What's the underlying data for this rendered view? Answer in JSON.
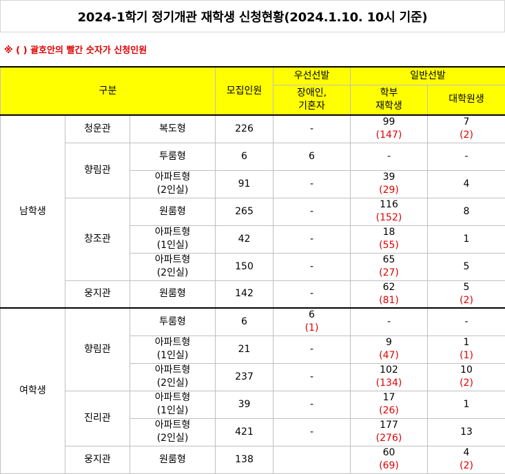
{
  "title": "2024-1학기 정기개관 재학생 신청현황(2024.1.10. 10시 기준)",
  "note": "※ ( ) 괄호안의 빨간 숫자가 신청인원",
  "headers": {
    "category": "구분",
    "capacity": "모집인원",
    "priority": "우선선발",
    "priority_sub": [
      "장애인,",
      "기혼자"
    ],
    "general": "일반선발",
    "undergrad_sub": [
      "학부",
      "재학생"
    ],
    "grad": "대학원생"
  },
  "groups": {
    "male": "남학생",
    "female": "여학생"
  },
  "rows": [
    {
      "building": "청운관",
      "type": [
        "복도형"
      ],
      "capacity": "226",
      "priority": "-",
      "priority_app": "",
      "undergrad": "99",
      "undergrad_app": "(147)",
      "grad": "7",
      "grad_app": "(2)"
    },
    {
      "building": "향림관",
      "type": [
        "투룸형"
      ],
      "capacity": "6",
      "priority": "6",
      "priority_app": "",
      "undergrad": "-",
      "undergrad_app": "",
      "grad": "-",
      "grad_app": ""
    },
    {
      "building": "",
      "type": [
        "아파트형",
        "(2인실)"
      ],
      "capacity": "91",
      "priority": "-",
      "priority_app": "",
      "undergrad": "39",
      "undergrad_app": "(29)",
      "grad": "4",
      "grad_app": ""
    },
    {
      "building": "창조관",
      "type": [
        "원룸형"
      ],
      "capacity": "265",
      "priority": "-",
      "priority_app": "",
      "undergrad": "116",
      "undergrad_app": "(152)",
      "grad": "8",
      "grad_app": ""
    },
    {
      "building": "",
      "type": [
        "아파트형",
        "(1인실)"
      ],
      "capacity": "42",
      "priority": "-",
      "priority_app": "",
      "undergrad": "18",
      "undergrad_app": "(55)",
      "grad": "1",
      "grad_app": ""
    },
    {
      "building": "",
      "type": [
        "아파트형",
        "(2인실)"
      ],
      "capacity": "150",
      "priority": "-",
      "priority_app": "",
      "undergrad": "65",
      "undergrad_app": "(27)",
      "grad": "5",
      "grad_app": ""
    },
    {
      "building": "웅지관",
      "type": [
        "원룸형"
      ],
      "capacity": "142",
      "priority": "-",
      "priority_app": "",
      "undergrad": "62",
      "undergrad_app": "(81)",
      "grad": "5",
      "grad_app": "(2)"
    },
    {
      "building": "향림관",
      "type": [
        "투룸형"
      ],
      "capacity": "6",
      "priority": "6",
      "priority_app": "(1)",
      "undergrad": "-",
      "undergrad_app": "",
      "grad": "-",
      "grad_app": ""
    },
    {
      "building": "",
      "type": [
        "아파트형",
        "(1인실)"
      ],
      "capacity": "21",
      "priority": "-",
      "priority_app": "",
      "undergrad": "9",
      "undergrad_app": "(47)",
      "grad": "1",
      "grad_app": "(1)"
    },
    {
      "building": "",
      "type": [
        "아파트형",
        "(2인실)"
      ],
      "capacity": "237",
      "priority": "-",
      "priority_app": "",
      "undergrad": "102",
      "undergrad_app": "(134)",
      "grad": "10",
      "grad_app": "(2)"
    },
    {
      "building": "진리관",
      "type": [
        "아파트형",
        "(1인실)"
      ],
      "capacity": "39",
      "priority": "-",
      "priority_app": "",
      "undergrad": "17",
      "undergrad_app": "(26)",
      "grad": "1",
      "grad_app": ""
    },
    {
      "building": "",
      "type": [
        "아파트형",
        "(2인실)"
      ],
      "capacity": "421",
      "priority": "-",
      "priority_app": "",
      "undergrad": "177",
      "undergrad_app": "(276)",
      "grad": "13",
      "grad_app": ""
    },
    {
      "building": "웅지관",
      "type": [
        "원룸형"
      ],
      "capacity": "138",
      "priority": "",
      "priority_app": "",
      "undergrad": "60",
      "undergrad_app": "(69)",
      "grad": "4",
      "grad_app": "(2)"
    }
  ]
}
